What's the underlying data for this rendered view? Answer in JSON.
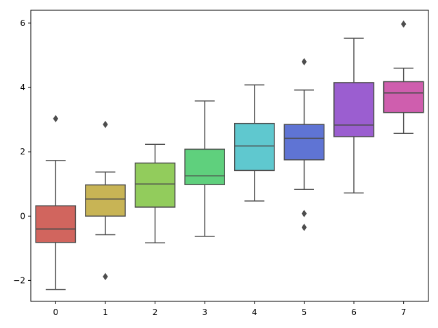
{
  "chart_data": {
    "type": "box",
    "title": "",
    "xlabel": "",
    "ylabel": "",
    "categories": [
      "0",
      "1",
      "2",
      "3",
      "4",
      "5",
      "6",
      "7"
    ],
    "y_ticks": [
      -2,
      0,
      2,
      4,
      6
    ],
    "y_tick_labels": [
      "−2",
      "0",
      "2",
      "4",
      "6"
    ],
    "ylim": [
      -2.65,
      6.4
    ],
    "grid": false,
    "legend": "none",
    "boxes": [
      {
        "category": "0",
        "color": "#d1655e",
        "whisker_low": -2.28,
        "q1": -0.82,
        "median": -0.4,
        "q3": 0.32,
        "whisker_high": 1.73,
        "outliers": [
          3.03
        ]
      },
      {
        "category": "1",
        "color": "#c8b455",
        "whisker_low": -0.58,
        "q1": 0.0,
        "median": 0.53,
        "q3": 0.97,
        "whisker_high": 1.37,
        "outliers": [
          2.85,
          -1.88
        ]
      },
      {
        "category": "2",
        "color": "#92cc5c",
        "whisker_low": -0.83,
        "q1": 0.28,
        "median": 1.0,
        "q3": 1.65,
        "whisker_high": 2.23,
        "outliers": []
      },
      {
        "category": "3",
        "color": "#5fd07d",
        "whisker_low": -0.63,
        "q1": 0.98,
        "median": 1.25,
        "q3": 2.08,
        "whisker_high": 3.58,
        "outliers": []
      },
      {
        "category": "4",
        "color": "#5fc8cf",
        "whisker_low": 0.47,
        "q1": 1.42,
        "median": 2.18,
        "q3": 2.88,
        "whisker_high": 4.08,
        "outliers": []
      },
      {
        "category": "5",
        "color": "#5f74d4",
        "whisker_low": 0.83,
        "q1": 1.75,
        "median": 2.42,
        "q3": 2.85,
        "whisker_high": 3.92,
        "outliers": [
          4.8,
          0.08,
          -0.35
        ]
      },
      {
        "category": "6",
        "color": "#9b5ed0",
        "whisker_low": 0.72,
        "q1": 2.47,
        "median": 2.83,
        "q3": 4.15,
        "whisker_high": 5.53,
        "outliers": []
      },
      {
        "category": "7",
        "color": "#cf5eae",
        "whisker_low": 2.57,
        "q1": 3.22,
        "median": 3.83,
        "q3": 4.18,
        "whisker_high": 4.6,
        "outliers": [
          5.97
        ]
      }
    ]
  }
}
